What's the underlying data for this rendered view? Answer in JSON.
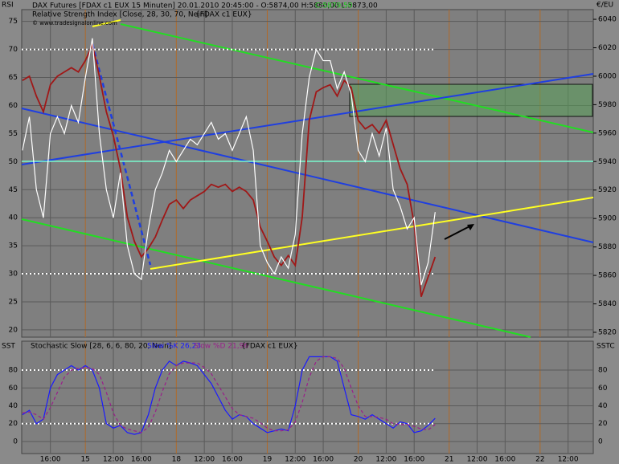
{
  "chart_data": [
    {
      "type": "line",
      "title": "DAX Futures [FDAX c1 EUX  15 Minuten] 20.01.2010 20:45:00 - O:5874,00 H:5880,00 L:5873,00",
      "close_label": "C:5879,50",
      "subtitle": "Relative Strength Index [Close, 28, 30, 70, Nein]",
      "source_tag": "{FDAX c1 EUX}",
      "copyright": "© www.tradesignalonline.com",
      "y_label": "RSI",
      "y2_label": "€/EU",
      "x": [
        4,
        5,
        6,
        7,
        8,
        9,
        10,
        11,
        12,
        13,
        14,
        15,
        16,
        17,
        18,
        19,
        20,
        21,
        22,
        23,
        24,
        25,
        26,
        27,
        28,
        29,
        30,
        31,
        32,
        33,
        34,
        35,
        36,
        37,
        38,
        39,
        40,
        41,
        42,
        43,
        44,
        45,
        46,
        47,
        48,
        49,
        50,
        51,
        52,
        53,
        54,
        55,
        56,
        57,
        58,
        59,
        60,
        61,
        62,
        63
      ],
      "xlim": [
        3.9,
        85.6
      ],
      "xticks": [
        {
          "value": 8,
          "label": "16:00"
        },
        {
          "value": 13,
          "label": "15"
        },
        {
          "value": 17,
          "label": "12:00"
        },
        {
          "value": 21,
          "label": "16:00"
        },
        {
          "value": 26,
          "label": "18"
        },
        {
          "value": 30,
          "label": "12:00"
        },
        {
          "value": 34,
          "label": "16:00"
        },
        {
          "value": 39,
          "label": "19"
        },
        {
          "value": 43,
          "label": "12:00"
        },
        {
          "value": 47,
          "label": "16:00"
        },
        {
          "value": 52,
          "label": "20"
        },
        {
          "value": 56,
          "label": "12:00"
        },
        {
          "value": 60,
          "label": "16:00"
        },
        {
          "value": 65,
          "label": "21"
        },
        {
          "value": 69,
          "label": "12:00"
        },
        {
          "value": 73,
          "label": "16:00"
        },
        {
          "value": 78,
          "label": "22"
        },
        {
          "value": 82,
          "label": "12:00"
        }
      ],
      "ylim": [
        18.7,
        77.1
      ],
      "yticks": [
        20,
        25,
        30,
        35,
        40,
        45,
        50,
        55,
        60,
        65,
        70,
        75
      ],
      "y2lim": [
        5816.6,
        6046.8
      ],
      "y2ticks": [
        5820,
        5840,
        5860,
        5880,
        5900,
        5920,
        5940,
        5960,
        5980,
        6000,
        6020,
        6040
      ],
      "levels": [
        70,
        30
      ],
      "series": [
        {
          "name": "Price",
          "axis": "y2",
          "color": "#a01818",
          "values": [
            5997,
            6000,
            5986,
            5975,
            5994,
            6000,
            6003,
            6006,
            6003,
            6011,
            6022,
            6000,
            5975,
            5958,
            5935,
            5901,
            5884,
            5873,
            5879,
            5887,
            5899,
            5910,
            5913,
            5907,
            5913,
            5916,
            5919,
            5924,
            5922,
            5924,
            5919,
            5922,
            5919,
            5913,
            5894,
            5884,
            5873,
            5867,
            5874,
            5867,
            5901,
            5969,
            5989,
            5992,
            5994,
            5986,
            5997,
            5992,
            5969,
            5963,
            5966,
            5960,
            5969,
            5952,
            5935,
            5924,
            5896,
            5845,
            5859,
            5873
          ]
        },
        {
          "name": "RSI",
          "color": "#ffffff",
          "values": [
            52,
            58,
            45,
            40,
            55,
            58,
            55,
            60,
            57,
            65,
            72,
            55,
            45,
            40,
            48,
            35,
            30,
            29,
            38,
            45,
            48,
            52,
            50,
            52,
            54,
            53,
            55,
            57,
            54,
            55,
            52,
            55,
            58,
            52,
            35,
            32,
            30,
            33,
            31,
            37,
            55,
            65,
            70,
            68,
            68,
            63,
            66,
            62,
            52,
            50,
            55,
            51,
            56,
            45,
            42,
            38,
            40,
            28,
            32,
            41
          ]
        }
      ]
    },
    {
      "type": "line",
      "title": "Stochastic Slow [28, 6, 6, 80, 20, Nein]",
      "source_tag": "{FDAX c1 EUX}",
      "y_label": "SST",
      "y2_label": "SSTC",
      "ylim": [
        -13.5,
        112.4
      ],
      "yticks": [
        0,
        20,
        40,
        60,
        80
      ],
      "levels": [
        80,
        20
      ],
      "series": [
        {
          "name": "Slow %K 26,23",
          "color": "#1a1aff",
          "values": [
            30,
            35,
            20,
            25,
            60,
            75,
            80,
            85,
            80,
            85,
            80,
            60,
            20,
            15,
            18,
            10,
            8,
            10,
            30,
            60,
            80,
            90,
            85,
            90,
            88,
            85,
            75,
            65,
            50,
            35,
            25,
            30,
            28,
            20,
            15,
            10,
            12,
            14,
            12,
            40,
            80,
            95,
            95,
            95,
            95,
            90,
            60,
            30,
            28,
            25,
            30,
            25,
            20,
            15,
            22,
            20,
            10,
            12,
            18,
            26
          ]
        },
        {
          "name": "Slow %D 21,96",
          "color": "#9a1f8a",
          "dashed": true,
          "values": [
            32,
            33,
            30,
            25,
            38,
            55,
            72,
            80,
            82,
            83,
            82,
            75,
            55,
            32,
            18,
            14,
            12,
            10,
            16,
            33,
            56,
            76,
            85,
            88,
            88,
            88,
            83,
            76,
            63,
            50,
            37,
            30,
            28,
            26,
            21,
            15,
            12,
            12,
            13,
            22,
            44,
            72,
            90,
            95,
            95,
            93,
            82,
            60,
            40,
            28,
            28,
            27,
            25,
            20,
            19,
            19,
            17,
            14,
            13,
            19
          ]
        }
      ]
    }
  ]
}
